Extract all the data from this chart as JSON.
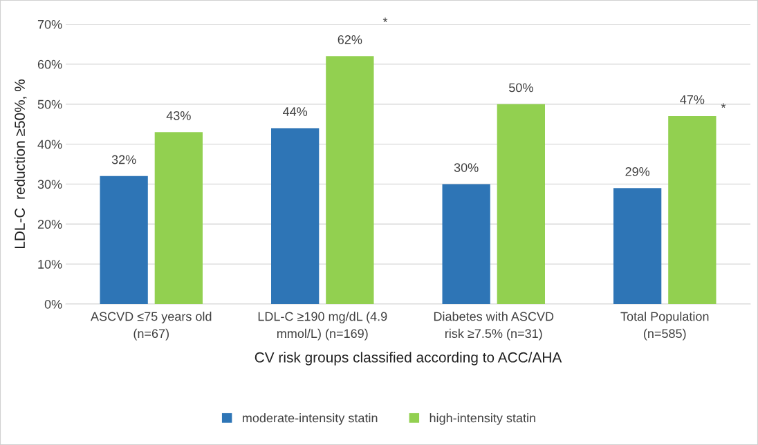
{
  "chart_data": {
    "type": "bar",
    "categories": [
      "ASCVD ≤75 years old\n(n=67)",
      "LDL-C ≥190 mg/dL (4.9\nmmol/L) (n=169)",
      "Diabetes with ASCVD\nrisk ≥7.5% (n=31)",
      "Total Population\n(n=585)"
    ],
    "series": [
      {
        "name": "moderate-intensity statin",
        "color": "#2e75b6",
        "values": [
          32,
          44,
          30,
          29
        ],
        "value_labels": [
          "32%",
          "44%",
          "30%",
          "29%"
        ]
      },
      {
        "name": "high-intensity statin",
        "color": "#92d050",
        "values": [
          43,
          62,
          50,
          47
        ],
        "value_labels": [
          "43%",
          "62%",
          "50%",
          "47%"
        ]
      }
    ],
    "xlabel": "CV risk groups classified according to ACC/AHA",
    "ylabel": "LDL-C  reduction ≥50%, %",
    "ylim": [
      0,
      70
    ],
    "yticks": [
      {
        "value": 0,
        "label": "0%"
      },
      {
        "value": 10,
        "label": "10%"
      },
      {
        "value": 20,
        "label": "20%"
      },
      {
        "value": 30,
        "label": "30%"
      },
      {
        "value": 40,
        "label": "40%"
      },
      {
        "value": 50,
        "label": "50%"
      },
      {
        "value": 60,
        "label": "60%"
      },
      {
        "value": 70,
        "label": "70%"
      }
    ],
    "grid": "y",
    "legend": "bottom",
    "annotations": [
      "*",
      "*"
    ]
  }
}
